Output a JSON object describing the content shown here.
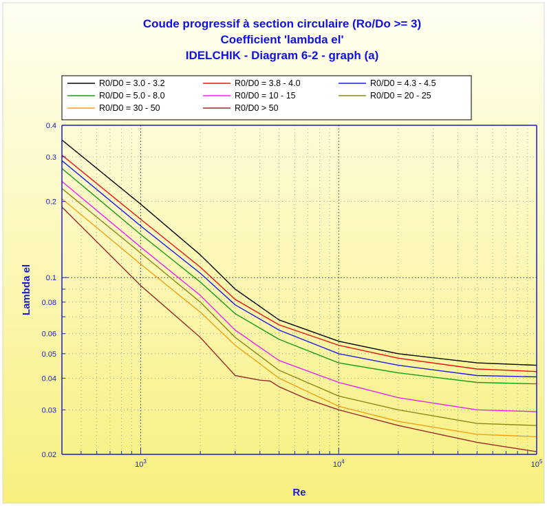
{
  "chart_data": {
    "type": "line",
    "title": [
      "Coude progressif à section circulaire (Ro/Do >= 3)",
      "Coefficient 'lambda el'",
      "IDELCHIK - Diagram 6-2 - graph (a)"
    ],
    "xlabel": "Re",
    "ylabel": "Lambda el",
    "x_scale": "log",
    "y_scale": "log",
    "xlim": [
      400,
      100000
    ],
    "ylim": [
      0.02,
      0.4
    ],
    "x_ticks": [
      {
        "value": 1000,
        "base": "10",
        "exp": "3"
      },
      {
        "value": 10000,
        "base": "10",
        "exp": "4"
      },
      {
        "value": 100000,
        "base": "10",
        "exp": "5"
      }
    ],
    "y_ticks": [
      {
        "value": 0.02,
        "label": "0.02"
      },
      {
        "value": 0.03,
        "label": "0.03"
      },
      {
        "value": 0.04,
        "label": "0.04"
      },
      {
        "value": 0.05,
        "label": "0.05"
      },
      {
        "value": 0.06,
        "label": "0.06"
      },
      {
        "value": 0.08,
        "label": "0.08"
      },
      {
        "value": 0.1,
        "label": "0.1"
      },
      {
        "value": 0.2,
        "label": "0.2"
      },
      {
        "value": 0.3,
        "label": "0.3"
      },
      {
        "value": 0.4,
        "label": "0.4"
      }
    ],
    "grid": true,
    "legend_position": "top",
    "colors": {
      "title": "#1010e0",
      "axis": "#1a1acc",
      "background_top": "#fffff2",
      "background_bottom": "#f7f07e"
    },
    "series": [
      {
        "name": "R0/D0 = 3.0 - 3.2",
        "color": "#000000",
        "x": [
          400,
          1000,
          2000,
          3000,
          5000,
          10000,
          20000,
          50000,
          100000
        ],
        "y": [
          0.35,
          0.195,
          0.123,
          0.09,
          0.068,
          0.056,
          0.05,
          0.046,
          0.045
        ]
      },
      {
        "name": "R0/D0 = 3.8 - 4.0",
        "color": "#ee1010",
        "x": [
          400,
          1000,
          2000,
          3000,
          5000,
          10000,
          20000,
          50000,
          100000
        ],
        "y": [
          0.305,
          0.17,
          0.11,
          0.082,
          0.065,
          0.054,
          0.048,
          0.0435,
          0.0425
        ]
      },
      {
        "name": "R0/D0 = 4.3 - 4.5",
        "color": "#1a1ae6",
        "x": [
          400,
          1000,
          2000,
          3000,
          5000,
          10000,
          20000,
          50000,
          100000
        ],
        "y": [
          0.29,
          0.16,
          0.104,
          0.078,
          0.062,
          0.05,
          0.045,
          0.041,
          0.0405
        ]
      },
      {
        "name": "R0/D0 = 5.0 - 8.0",
        "color": "#169c16",
        "x": [
          400,
          1000,
          2000,
          3000,
          5000,
          10000,
          20000,
          50000,
          100000
        ],
        "y": [
          0.27,
          0.148,
          0.096,
          0.072,
          0.057,
          0.046,
          0.042,
          0.0385,
          0.038
        ]
      },
      {
        "name": "R0/D0 = 10 - 15",
        "color": "#ee22ee",
        "x": [
          400,
          1000,
          2000,
          3000,
          5000,
          10000,
          20000,
          50000,
          100000
        ],
        "y": [
          0.24,
          0.132,
          0.085,
          0.062,
          0.047,
          0.0385,
          0.0335,
          0.03,
          0.0295
        ]
      },
      {
        "name": "R0/D0 = 20 - 25",
        "color": "#8a8a14",
        "x": [
          400,
          1000,
          2000,
          3000,
          5000,
          10000,
          20000,
          50000,
          100000
        ],
        "y": [
          0.225,
          0.125,
          0.08,
          0.058,
          0.043,
          0.034,
          0.03,
          0.0265,
          0.026
        ]
      },
      {
        "name": "R0/D0 = 30 - 50",
        "color": "#f5a014",
        "x": [
          400,
          1000,
          2000,
          3000,
          5000,
          10000,
          20000,
          50000,
          100000
        ],
        "y": [
          0.205,
          0.113,
          0.073,
          0.054,
          0.04,
          0.031,
          0.027,
          0.024,
          0.0235
        ]
      },
      {
        "name": "R0/D0 > 50",
        "color": "#9a2a2a",
        "x": [
          400,
          1000,
          2000,
          3000,
          4000,
          4500,
          5000,
          7000,
          10000,
          20000,
          50000,
          100000
        ],
        "y": [
          0.19,
          0.093,
          0.058,
          0.041,
          0.0393,
          0.039,
          0.037,
          0.033,
          0.03,
          0.026,
          0.0223,
          0.0205
        ]
      }
    ]
  }
}
